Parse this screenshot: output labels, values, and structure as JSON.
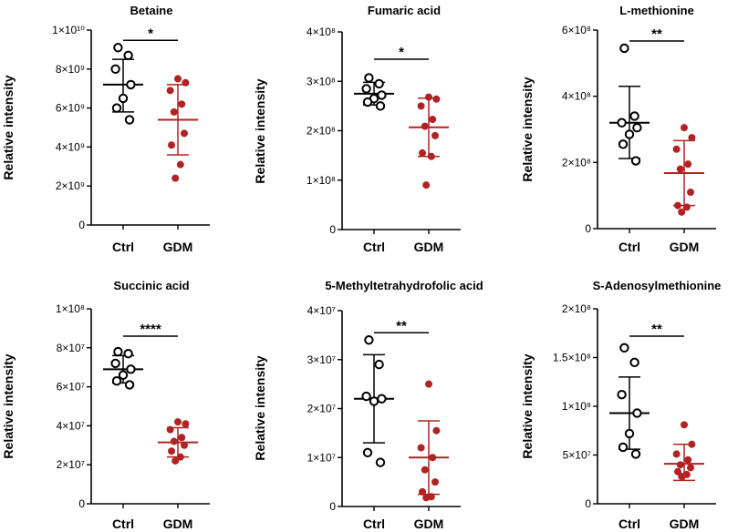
{
  "chart_data": [
    {
      "type": "scatter",
      "title": "Betaine",
      "ylabel": "Relative intensity",
      "categories": [
        "Ctrl",
        "GDM"
      ],
      "ylim": [
        0,
        10000000000
      ],
      "yticks": [
        {
          "value": 0,
          "label": "0"
        },
        {
          "value": 2000000000,
          "label": "2×10⁹"
        },
        {
          "value": 4000000000,
          "label": "4×10⁹"
        },
        {
          "value": 6000000000,
          "label": "6×10⁹"
        },
        {
          "value": 8000000000,
          "label": "8×10⁹"
        },
        {
          "value": 10000000000,
          "label": "1×10¹⁰"
        }
      ],
      "series": [
        {
          "name": "Ctrl",
          "color": "#000000",
          "mean": 7200000000,
          "sd_low": 5800000000,
          "sd_high": 8500000000,
          "values": [
            9100000000,
            8700000000,
            8000000000,
            7200000000,
            6500000000,
            6000000000,
            5400000000
          ]
        },
        {
          "name": "GDM",
          "color": "#b22222",
          "mean": 5400000000,
          "sd_low": 3600000000,
          "sd_high": 7200000000,
          "values": [
            7500000000,
            7300000000,
            6900000000,
            6200000000,
            5800000000,
            4700000000,
            4100000000,
            3100000000,
            2400000000
          ]
        }
      ],
      "significance": "*"
    },
    {
      "type": "scatter",
      "title": "Fumaric acid",
      "ylabel": "Relative intensity",
      "categories": [
        "Ctrl",
        "GDM"
      ],
      "ylim": [
        0,
        400000000
      ],
      "yticks": [
        {
          "value": 0,
          "label": "0"
        },
        {
          "value": 100000000,
          "label": "1×10⁸"
        },
        {
          "value": 200000000,
          "label": "2×10⁸"
        },
        {
          "value": 300000000,
          "label": "3×10⁸"
        },
        {
          "value": 400000000,
          "label": "4×10⁸"
        }
      ],
      "series": [
        {
          "name": "Ctrl",
          "color": "#000000",
          "mean": 275000000,
          "sd_low": 252000000,
          "sd_high": 298000000,
          "values": [
            307000000,
            295000000,
            285000000,
            272000000,
            265000000,
            258000000,
            250000000
          ]
        },
        {
          "name": "GDM",
          "color": "#b22222",
          "mean": 207000000,
          "sd_low": 148000000,
          "sd_high": 266000000,
          "values": [
            268000000,
            264000000,
            250000000,
            223000000,
            209000000,
            190000000,
            155000000,
            148000000,
            90000000
          ]
        }
      ],
      "significance": "*"
    },
    {
      "type": "scatter",
      "title": "L-methionine",
      "ylabel": "Relative intensity",
      "categories": [
        "Ctrl",
        "GDM"
      ],
      "ylim": [
        0,
        600000000
      ],
      "yticks": [
        {
          "value": 0,
          "label": "0"
        },
        {
          "value": 200000000,
          "label": "2×10⁸"
        },
        {
          "value": 400000000,
          "label": "4×10⁸"
        },
        {
          "value": 600000000,
          "label": "6×10⁸"
        }
      ],
      "series": [
        {
          "name": "Ctrl",
          "color": "#000000",
          "mean": 320000000,
          "sd_low": 212000000,
          "sd_high": 430000000,
          "values": [
            545000000,
            340000000,
            320000000,
            305000000,
            285000000,
            255000000,
            205000000
          ]
        },
        {
          "name": "GDM",
          "color": "#b22222",
          "mean": 168000000,
          "sd_low": 70000000,
          "sd_high": 266000000,
          "values": [
            305000000,
            275000000,
            240000000,
            195000000,
            180000000,
            110000000,
            70000000,
            65000000,
            50000000
          ]
        }
      ],
      "significance": "**"
    },
    {
      "type": "scatter",
      "title": "Succinic acid",
      "ylabel": "Relative intensity",
      "categories": [
        "Ctrl",
        "GDM"
      ],
      "ylim": [
        0,
        100000000
      ],
      "yticks": [
        {
          "value": 0,
          "label": "0"
        },
        {
          "value": 20000000,
          "label": "2×10⁷"
        },
        {
          "value": 40000000,
          "label": "4×10⁷"
        },
        {
          "value": 60000000,
          "label": "6×10⁷"
        },
        {
          "value": 80000000,
          "label": "8×10⁷"
        },
        {
          "value": 100000000,
          "label": "1×10⁸"
        }
      ],
      "series": [
        {
          "name": "Ctrl",
          "color": "#000000",
          "mean": 69000000,
          "sd_low": 62000000,
          "sd_high": 76000000,
          "values": [
            78000000,
            77000000,
            72000000,
            69000000,
            66000000,
            63000000,
            61000000
          ]
        },
        {
          "name": "GDM",
          "color": "#b22222",
          "mean": 31500000,
          "sd_low": 24000000,
          "sd_high": 39000000,
          "values": [
            42000000,
            41000000,
            38000000,
            34000000,
            32000000,
            30000000,
            27000000,
            24000000,
            22000000
          ]
        }
      ],
      "significance": "****"
    },
    {
      "type": "scatter",
      "title": "5-Methyltetrahydrofolic acid",
      "ylabel": "Relative intensity",
      "categories": [
        "Ctrl",
        "GDM"
      ],
      "ylim": [
        0,
        40000000
      ],
      "yticks": [
        {
          "value": 0,
          "label": "0"
        },
        {
          "value": 10000000,
          "label": "1×10⁷"
        },
        {
          "value": 20000000,
          "label": "2×10⁷"
        },
        {
          "value": 30000000,
          "label": "3×10⁷"
        },
        {
          "value": 40000000,
          "label": "4×10⁷"
        }
      ],
      "series": [
        {
          "name": "Ctrl",
          "color": "#000000",
          "mean": 22000000,
          "sd_low": 13000000,
          "sd_high": 31000000,
          "values": [
            34000000,
            29000000,
            22500000,
            22000000,
            21500000,
            11000000,
            9000000
          ]
        },
        {
          "name": "GDM",
          "color": "#b22222",
          "mean": 10000000,
          "sd_low": 2500000,
          "sd_high": 17500000,
          "values": [
            25000000,
            15500000,
            12000000,
            10000000,
            7500000,
            5000000,
            3000000,
            2000000,
            1800000
          ]
        }
      ],
      "significance": "**"
    },
    {
      "type": "scatter",
      "title": "S-Adenosylmethionine",
      "ylabel": "Relative intensity",
      "categories": [
        "Ctrl",
        "GDM"
      ],
      "ylim": [
        0,
        200000000
      ],
      "yticks": [
        {
          "value": 0,
          "label": "0"
        },
        {
          "value": 50000000,
          "label": "5×10⁷"
        },
        {
          "value": 100000000,
          "label": "1×10⁸"
        },
        {
          "value": 150000000,
          "label": "1.5×10⁸"
        },
        {
          "value": 200000000,
          "label": "2×10⁸"
        }
      ],
      "series": [
        {
          "name": "Ctrl",
          "color": "#000000",
          "mean": 93000000,
          "sd_low": 56000000,
          "sd_high": 130000000,
          "values": [
            160000000,
            145000000,
            112000000,
            93000000,
            72000000,
            58000000,
            51000000
          ]
        },
        {
          "name": "GDM",
          "color": "#b22222",
          "mean": 41000000,
          "sd_low": 24000000,
          "sd_high": 61000000,
          "values": [
            81000000,
            61000000,
            51000000,
            45000000,
            40000000,
            37000000,
            33000000,
            30000000,
            28000000
          ]
        }
      ],
      "significance": "**"
    }
  ]
}
